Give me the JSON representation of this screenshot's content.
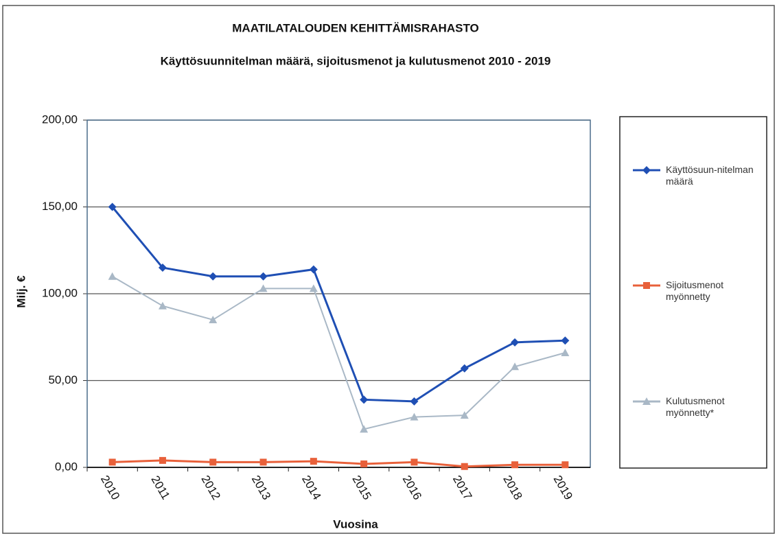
{
  "chart_data": {
    "type": "line",
    "title": "MAATILATALOUDEN KEHITTÄMISRAHASTO",
    "subtitle": "Käyttösuunnitelman määrä, sijoitusmenot ja kulutusmenot 2010  - 2019",
    "x_label": "Vuosina",
    "y_label": "Milj. €",
    "categories": [
      "2010",
      "2011",
      "2012",
      "2013",
      "2014",
      "2015",
      "2016",
      "2017",
      "2018",
      "2019"
    ],
    "series": [
      {
        "name": "Käyttösuun-nitelman määrä",
        "color": "#1f4fb4",
        "marker": "diamond",
        "values": [
          150,
          115,
          110,
          110,
          114,
          39,
          38,
          57,
          72,
          73
        ]
      },
      {
        "name": "Sijoitusmenot myönnetty",
        "color": "#e8603a",
        "marker": "square",
        "values": [
          3,
          4,
          3,
          3,
          3.5,
          2,
          3,
          0.5,
          1.5,
          1.5
        ]
      },
      {
        "name": "Kulutusmenot myönnetty*",
        "color": "#a9b8c6",
        "marker": "triangle",
        "values": [
          110,
          93,
          85,
          103,
          103,
          22,
          29,
          30,
          58,
          66
        ]
      }
    ],
    "ylim": [
      0,
      200
    ],
    "yticks": [
      {
        "value": 0,
        "label": "0,00"
      },
      {
        "value": 50,
        "label": "50,00"
      },
      {
        "value": 100,
        "label": "100,00"
      },
      {
        "value": 150,
        "label": "150,00"
      },
      {
        "value": 200,
        "label": "200,00"
      }
    ],
    "grid": true,
    "legend": "right"
  }
}
